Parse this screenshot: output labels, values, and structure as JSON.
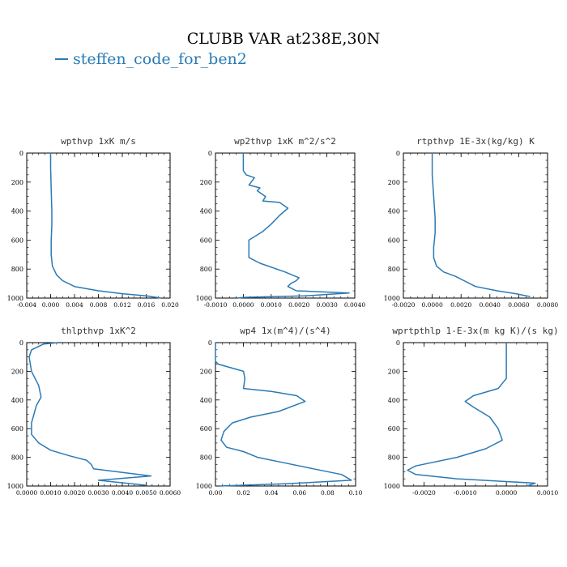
{
  "figure": {
    "title": "CLUBB VAR at238E,30N",
    "legend_label": "steffen_code_for_ben2",
    "line_color": "#2a7ab5"
  },
  "chart_data": [
    {
      "type": "line",
      "title": "wpthvp  1xK m/s",
      "xlim": [
        -0.004,
        0.02
      ],
      "ylim": [
        0,
        1000
      ],
      "y_inverted": true,
      "xticks": [
        "-0.004",
        "0.000",
        "0.004",
        "0.008",
        "0.012",
        "0.016",
        "0.020"
      ],
      "yticks": [
        "0",
        "200",
        "400",
        "600",
        "800",
        "1000"
      ],
      "series": [
        {
          "name": "steffen_code_for_ben2",
          "x": [
            0.0,
            0.0,
            0.0001,
            0.0002,
            0.0002,
            0.0001,
            0.0001,
            0.0003,
            0.001,
            0.002,
            0.004,
            0.008,
            0.012,
            0.016,
            0.0185
          ],
          "y": [
            0,
            100,
            250,
            400,
            500,
            600,
            700,
            780,
            840,
            880,
            920,
            950,
            970,
            985,
            1000
          ]
        }
      ]
    },
    {
      "type": "line",
      "title": "wp2thvp  1xK m^2/s^2",
      "xlim": [
        -0.001,
        0.004
      ],
      "ylim": [
        0,
        1000
      ],
      "y_inverted": true,
      "xticks": [
        "-0.0010",
        "0.0000",
        "0.0010",
        "0.0020",
        "0.0030",
        "0.0040"
      ],
      "yticks": [
        "0",
        "200",
        "400",
        "600",
        "800",
        "1000"
      ],
      "series": [
        {
          "name": "steffen_code_for_ben2",
          "x": [
            0.0,
            0.0,
            0.0001,
            0.0004,
            0.0002,
            0.0006,
            0.0005,
            0.0008,
            0.0007,
            0.0013,
            0.0016,
            0.0013,
            0.001,
            0.0007,
            0.0002,
            0.0002,
            0.0006,
            0.0015,
            0.002,
            0.0019,
            0.0017,
            0.0016,
            0.0019,
            0.0038,
            0.0022,
            0.0,
            -0.0002
          ],
          "y": [
            0,
            120,
            150,
            170,
            220,
            240,
            260,
            300,
            330,
            340,
            380,
            430,
            490,
            540,
            600,
            720,
            760,
            820,
            860,
            880,
            900,
            920,
            950,
            965,
            985,
            995,
            1000
          ]
        }
      ]
    },
    {
      "type": "line",
      "title": "rtpthvp  1E-3x(kg/kg) K",
      "xlim": [
        -0.002,
        0.008
      ],
      "ylim": [
        0,
        1000
      ],
      "y_inverted": true,
      "xticks": [
        "-0.0020",
        "0.0000",
        "0.0020",
        "0.0040",
        "0.0060",
        "0.0080"
      ],
      "yticks": [
        "0",
        "200",
        "400",
        "600",
        "800",
        "1000"
      ],
      "series": [
        {
          "name": "steffen_code_for_ben2",
          "x": [
            0.0,
            0.0,
            0.0001,
            0.0002,
            0.0002,
            0.0001,
            0.0001,
            0.0003,
            0.0008,
            0.0016,
            0.0022,
            0.003,
            0.0045,
            0.0058,
            0.0068
          ],
          "y": [
            0,
            150,
            300,
            450,
            550,
            650,
            720,
            780,
            820,
            850,
            880,
            920,
            950,
            970,
            990
          ]
        }
      ]
    },
    {
      "type": "line",
      "title": "thlpthvp  1xK^2",
      "xlim": [
        0.0,
        0.006
      ],
      "ylim": [
        0,
        1000
      ],
      "y_inverted": true,
      "xticks": [
        "0.0000",
        "0.0010",
        "0.0020",
        "0.0030",
        "0.0040",
        "0.0050",
        "0.0060"
      ],
      "yticks": [
        "0",
        "200",
        "400",
        "600",
        "800",
        "1000"
      ],
      "series": [
        {
          "name": "steffen_code_for_ben2",
          "x": [
            0.0013,
            0.0007,
            0.0002,
            0.0001,
            0.0002,
            0.0005,
            0.0006,
            0.0004,
            0.0003,
            0.0002,
            0.0002,
            0.0005,
            0.001,
            0.0018,
            0.0025,
            0.0027,
            0.0028,
            0.0052,
            0.003,
            0.005
          ],
          "y": [
            0,
            10,
            50,
            100,
            200,
            300,
            380,
            440,
            500,
            560,
            640,
            700,
            750,
            790,
            820,
            850,
            880,
            930,
            960,
            995
          ]
        }
      ]
    },
    {
      "type": "line",
      "title": "wp4  1x(m^4)/(s^4)",
      "xlim": [
        0.0,
        0.1
      ],
      "ylim": [
        0,
        1000
      ],
      "y_inverted": true,
      "xticks": [
        "0.00",
        "0.02",
        "0.04",
        "0.06",
        "0.08",
        "0.10"
      ],
      "yticks": [
        "0",
        "200",
        "400",
        "600",
        "800",
        "1000"
      ],
      "series": [
        {
          "name": "steffen_code_for_ben2",
          "x": [
            0.0,
            0.0,
            0.002,
            0.02,
            0.021,
            0.02,
            0.04,
            0.058,
            0.064,
            0.045,
            0.025,
            0.012,
            0.006,
            0.004,
            0.008,
            0.02,
            0.03,
            0.05,
            0.07,
            0.09,
            0.097,
            0.05,
            0.003
          ],
          "y": [
            0,
            130,
            150,
            200,
            250,
            320,
            340,
            370,
            410,
            480,
            520,
            560,
            620,
            680,
            730,
            760,
            800,
            840,
            880,
            920,
            960,
            985,
            1000
          ]
        }
      ]
    },
    {
      "type": "line",
      "title": "wprtpthlp  1-E-3x(m kg K)/(s kg)",
      "xlim": [
        -0.0025,
        0.001
      ],
      "ylim": [
        0,
        1000
      ],
      "y_inverted": true,
      "xticks": [
        "-0.0020",
        "-0.0010",
        "0.0000",
        "0.0010"
      ],
      "yticks": [
        "0",
        "200",
        "400",
        "600",
        "800",
        "1000"
      ],
      "series": [
        {
          "name": "steffen_code_for_ben2",
          "x": [
            0.0,
            0.0,
            0.0,
            -0.0002,
            -0.0008,
            -0.001,
            -0.0008,
            -0.0004,
            -0.0002,
            -0.0001,
            -0.0005,
            -0.0012,
            -0.0022,
            -0.0024,
            -0.0022,
            -0.0012,
            0.0007,
            0.0005
          ],
          "y": [
            0,
            100,
            250,
            320,
            370,
            410,
            450,
            520,
            600,
            680,
            740,
            800,
            860,
            890,
            920,
            950,
            980,
            1000
          ]
        }
      ]
    }
  ]
}
